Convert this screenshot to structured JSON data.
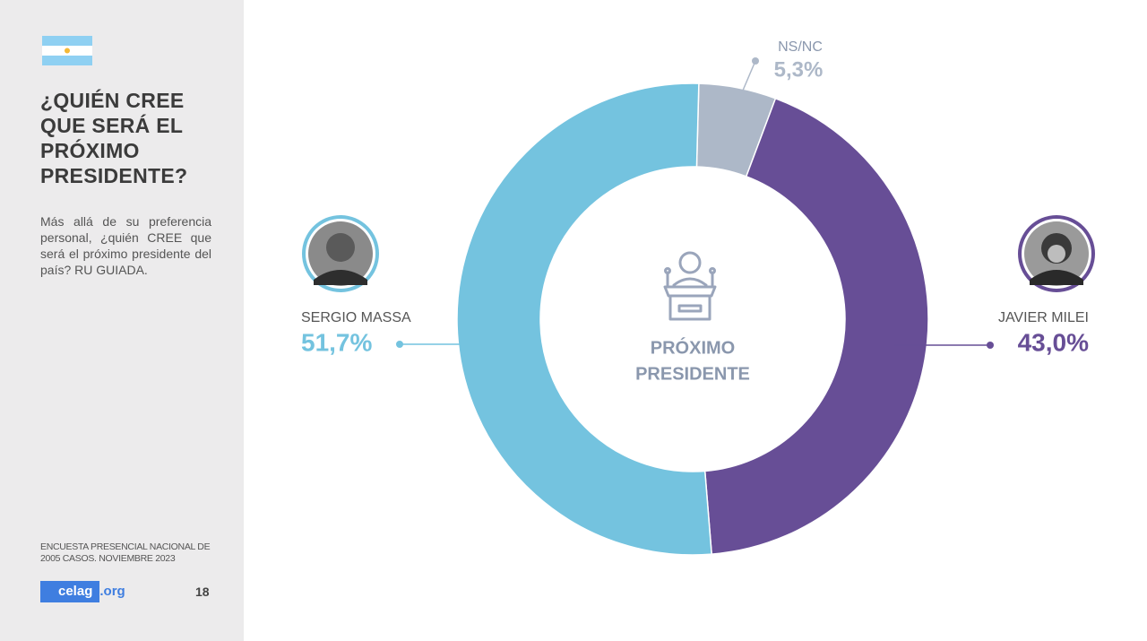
{
  "sidebar": {
    "title": "¿QUIÉN CREE QUE SERÁ EL PRÓXIMO PRESIDENTE?",
    "subtitle": "Más allá de su preferencia personal, ¿quién CREE que será el próximo presidente del país? RU GUIADA.",
    "source": "ENCUESTA PRESENCIAL NACIONAL DE 2005 CASOS. NOVIEMBRE 2023",
    "logo": "celag",
    "logo_suffix": ".org",
    "page_number": "18"
  },
  "chart_data": {
    "type": "pie",
    "donut": true,
    "center_label": [
      "PRÓXIMO",
      "PRESIDENTE"
    ],
    "categories": [
      "NS/NC",
      "JAVIER MILEI",
      "SERGIO MASSA"
    ],
    "values": [
      5.3,
      43.0,
      51.7
    ],
    "value_labels": [
      "5,3%",
      "43,0%",
      "51,7%"
    ],
    "colors": [
      "#adb8c8",
      "#674e96",
      "#74c3df"
    ]
  }
}
